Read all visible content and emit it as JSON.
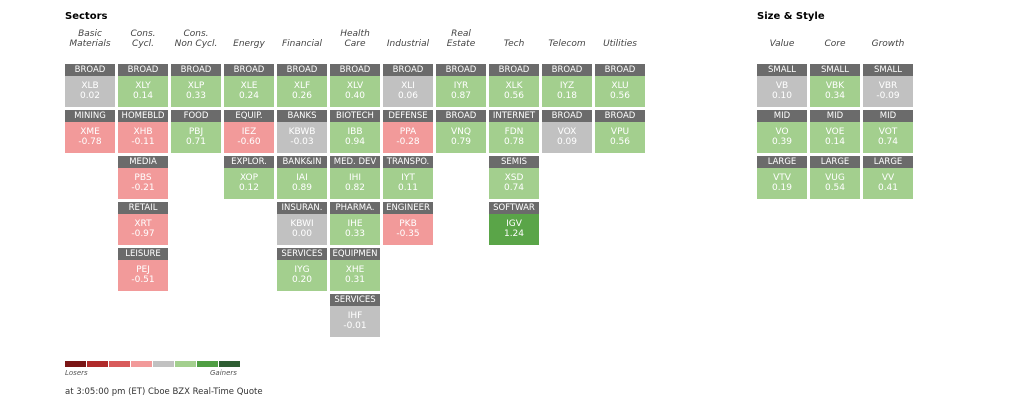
{
  "sectors": {
    "title": "Sectors",
    "columns": [
      {
        "header": [
          "Basic",
          "Materials"
        ],
        "tiles": [
          {
            "label": "BROAD",
            "ticker": "XLB",
            "change": "0.02",
            "color": "#c1c1c1"
          },
          {
            "label": "MINING",
            "ticker": "XME",
            "change": "-0.78",
            "color": "#f29a9a"
          }
        ]
      },
      {
        "header": [
          "Cons.",
          "Cycl."
        ],
        "tiles": [
          {
            "label": "BROAD",
            "ticker": "XLY",
            "change": "0.14",
            "color": "#a3cf8e"
          },
          {
            "label": "HOMEBLD",
            "ticker": "XHB",
            "change": "-0.11",
            "color": "#f29a9a"
          },
          {
            "label": "MEDIA",
            "ticker": "PBS",
            "change": "-0.21",
            "color": "#f29a9a"
          },
          {
            "label": "RETAIL",
            "ticker": "XRT",
            "change": "-0.97",
            "color": "#f29a9a"
          },
          {
            "label": "LEISURE",
            "ticker": "PEJ",
            "change": "-0.51",
            "color": "#f29a9a"
          }
        ]
      },
      {
        "header": [
          "Cons.",
          "Non Cycl."
        ],
        "tiles": [
          {
            "label": "BROAD",
            "ticker": "XLP",
            "change": "0.33",
            "color": "#a3cf8e"
          },
          {
            "label": "FOOD",
            "ticker": "PBJ",
            "change": "0.71",
            "color": "#a3cf8e"
          }
        ]
      },
      {
        "header": [
          "Energy"
        ],
        "tiles": [
          {
            "label": "BROAD",
            "ticker": "XLE",
            "change": "0.24",
            "color": "#a3cf8e"
          },
          {
            "label": "EQUIP.",
            "ticker": "IEZ",
            "change": "-0.60",
            "color": "#f29a9a"
          },
          {
            "label": "EXPLOR.",
            "ticker": "XOP",
            "change": "0.12",
            "color": "#a3cf8e"
          }
        ]
      },
      {
        "header": [
          "Financial"
        ],
        "tiles": [
          {
            "label": "BROAD",
            "ticker": "XLF",
            "change": "0.26",
            "color": "#a3cf8e"
          },
          {
            "label": "BANKS",
            "ticker": "KBWB",
            "change": "-0.03",
            "color": "#c1c1c1"
          },
          {
            "label": "BANK&IN",
            "ticker": "IAI",
            "change": "0.89",
            "color": "#a3cf8e"
          },
          {
            "label": "INSURAN.",
            "ticker": "KBWI",
            "change": "0.00",
            "color": "#c1c1c1"
          },
          {
            "label": "SERVICES",
            "ticker": "IYG",
            "change": "0.20",
            "color": "#a3cf8e"
          }
        ]
      },
      {
        "header": [
          "Health",
          "Care"
        ],
        "tiles": [
          {
            "label": "BROAD",
            "ticker": "XLV",
            "change": "0.40",
            "color": "#a3cf8e"
          },
          {
            "label": "BIOTECH",
            "ticker": "IBB",
            "change": "0.94",
            "color": "#a3cf8e"
          },
          {
            "label": "MED. DEV",
            "ticker": "IHI",
            "change": "0.82",
            "color": "#a3cf8e"
          },
          {
            "label": "PHARMA.",
            "ticker": "IHE",
            "change": "0.33",
            "color": "#a3cf8e"
          },
          {
            "label": "EQUIPMEN",
            "ticker": "XHE",
            "change": "0.31",
            "color": "#a3cf8e"
          },
          {
            "label": "SERVICES",
            "ticker": "IHF",
            "change": "-0.01",
            "color": "#c1c1c1"
          }
        ]
      },
      {
        "header": [
          "Industrial"
        ],
        "tiles": [
          {
            "label": "BROAD",
            "ticker": "XLI",
            "change": "0.06",
            "color": "#c1c1c1"
          },
          {
            "label": "DEFENSE",
            "ticker": "PPA",
            "change": "-0.28",
            "color": "#f29a9a"
          },
          {
            "label": "TRANSPO.",
            "ticker": "IYT",
            "change": "0.11",
            "color": "#a3cf8e"
          },
          {
            "label": "ENGINEER",
            "ticker": "PKB",
            "change": "-0.35",
            "color": "#f29a9a"
          }
        ]
      },
      {
        "header": [
          "Real",
          "Estate"
        ],
        "tiles": [
          {
            "label": "BROAD",
            "ticker": "IYR",
            "change": "0.87",
            "color": "#a3cf8e"
          },
          {
            "label": "BROAD",
            "ticker": "VNQ",
            "change": "0.79",
            "color": "#a3cf8e"
          }
        ]
      },
      {
        "header": [
          "Tech"
        ],
        "tiles": [
          {
            "label": "BROAD",
            "ticker": "XLK",
            "change": "0.56",
            "color": "#a3cf8e"
          },
          {
            "label": "INTERNET",
            "ticker": "FDN",
            "change": "0.78",
            "color": "#a3cf8e"
          },
          {
            "label": "SEMIS",
            "ticker": "XSD",
            "change": "0.74",
            "color": "#a3cf8e"
          },
          {
            "label": "SOFTWAR",
            "ticker": "IGV",
            "change": "1.24",
            "color": "#5aa548"
          }
        ]
      },
      {
        "header": [
          "Telecom"
        ],
        "tiles": [
          {
            "label": "BROAD",
            "ticker": "IYZ",
            "change": "0.18",
            "color": "#a3cf8e"
          },
          {
            "label": "BROAD",
            "ticker": "VOX",
            "change": "0.09",
            "color": "#c1c1c1"
          }
        ]
      },
      {
        "header": [
          "Utilities"
        ],
        "tiles": [
          {
            "label": "BROAD",
            "ticker": "XLU",
            "change": "0.56",
            "color": "#a3cf8e"
          },
          {
            "label": "BROAD",
            "ticker": "VPU",
            "change": "0.56",
            "color": "#a3cf8e"
          }
        ]
      }
    ]
  },
  "size_style": {
    "title": "Size & Style",
    "columns": [
      {
        "header": [
          "Value"
        ],
        "tiles": [
          {
            "label": "SMALL",
            "ticker": "VB",
            "change": "0.10",
            "color": "#c1c1c1"
          },
          {
            "label": "MID",
            "ticker": "VO",
            "change": "0.39",
            "color": "#a3cf8e"
          },
          {
            "label": "LARGE",
            "ticker": "VTV",
            "change": "0.19",
            "color": "#a3cf8e"
          }
        ]
      },
      {
        "header": [
          "Core"
        ],
        "tiles": [
          {
            "label": "SMALL",
            "ticker": "VBK",
            "change": "0.34",
            "color": "#a3cf8e"
          },
          {
            "label": "MID",
            "ticker": "VOE",
            "change": "0.14",
            "color": "#a3cf8e"
          },
          {
            "label": "LARGE",
            "ticker": "VUG",
            "change": "0.54",
            "color": "#a3cf8e"
          }
        ]
      },
      {
        "header": [
          "Growth"
        ],
        "tiles": [
          {
            "label": "SMALL",
            "ticker": "VBR",
            "change": "-0.09",
            "color": "#c1c1c1"
          },
          {
            "label": "MID",
            "ticker": "VOT",
            "change": "0.74",
            "color": "#a3cf8e"
          },
          {
            "label": "LARGE",
            "ticker": "VV",
            "change": "0.41",
            "color": "#a3cf8e"
          }
        ]
      }
    ]
  },
  "legend": {
    "low": "Losers",
    "high": "Gainers"
  },
  "footer": "at 3:05:00 pm (ET) Cboe BZX Real-Time Quote"
}
